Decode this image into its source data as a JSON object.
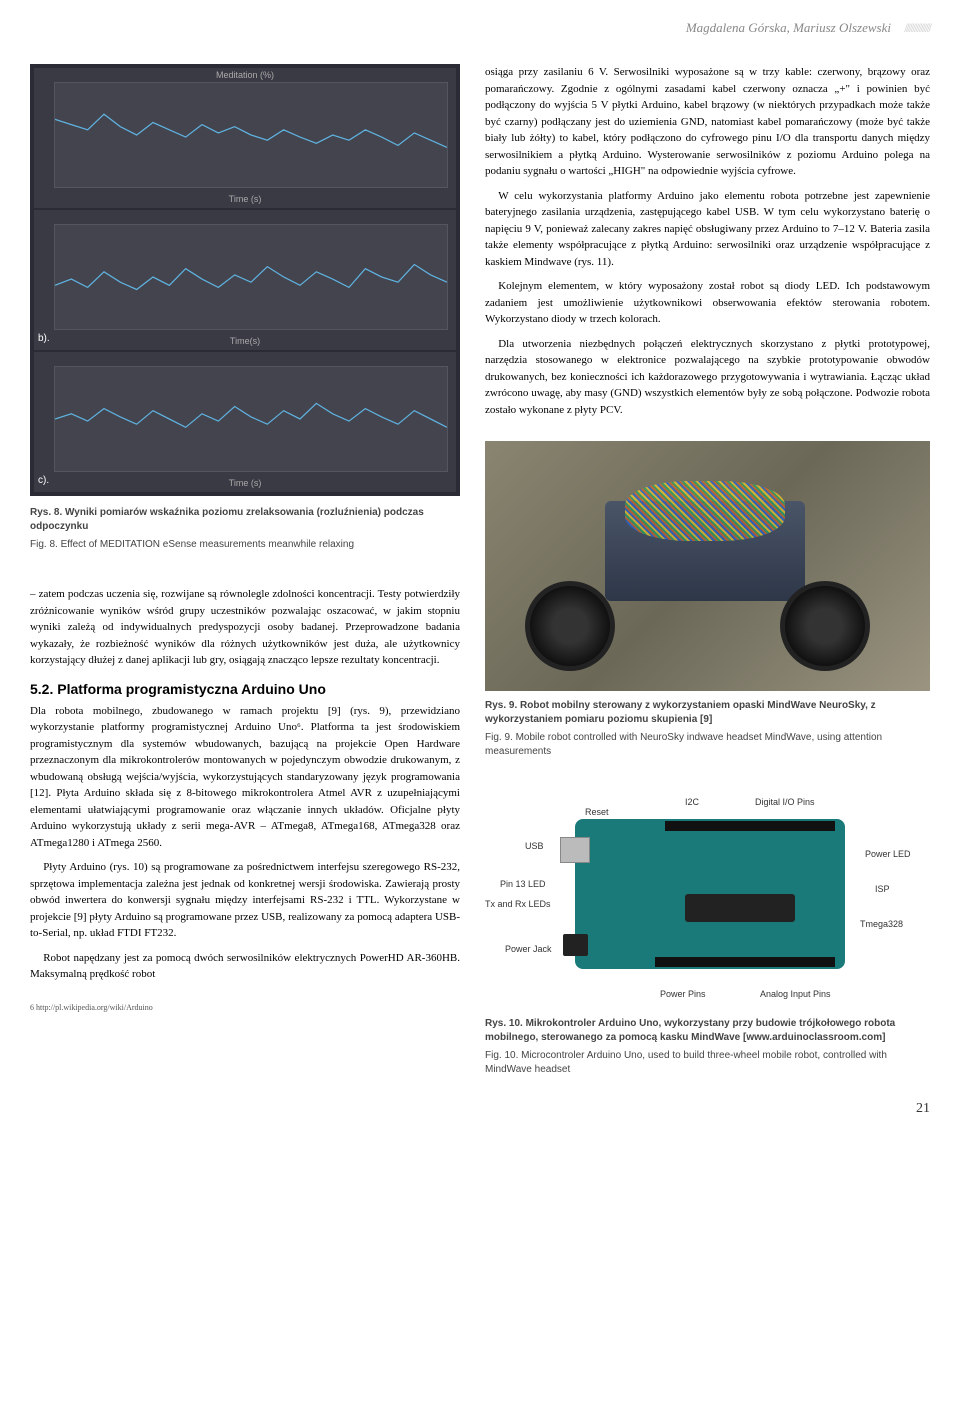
{
  "header": {
    "authors": "Magdalena Górska, Mariusz Olszewski"
  },
  "charts": {
    "panel_bg": "#3a3a45",
    "plot_bg": "#44444f",
    "line_color": "#5fb3e0",
    "grid_color": "#555560",
    "top_label": "Meditation (%)",
    "x_label": "Time (s)",
    "x_label_b": "Time(s)",
    "x_label_c": "Time (s)",
    "letter_b": "b).",
    "letter_c": "c).",
    "series_a": [
      65,
      60,
      55,
      70,
      58,
      50,
      62,
      55,
      48,
      60,
      52,
      58,
      50,
      45,
      55,
      48,
      42,
      50,
      45,
      55,
      48,
      40,
      52,
      45,
      38
    ],
    "series_b": [
      42,
      48,
      40,
      55,
      45,
      38,
      50,
      42,
      58,
      48,
      40,
      52,
      45,
      60,
      50,
      42,
      55,
      48,
      40,
      58,
      50,
      45,
      62,
      52,
      45
    ],
    "series_c": [
      50,
      55,
      48,
      60,
      52,
      45,
      58,
      50,
      42,
      55,
      48,
      62,
      52,
      45,
      58,
      50,
      65,
      55,
      48,
      60,
      52,
      45,
      58,
      50,
      42
    ]
  },
  "captions": {
    "fig8_bold": "Rys. 8. Wyniki pomiarów wskaźnika poziomu zrelaksowania (rozluźnienia) podczas odpoczynku",
    "fig8_plain": "Fig. 8. Effect of MEDITATION eSense measurements meanwhile relaxing",
    "fig9_bold": "Rys. 9. Robot mobilny sterowany z wykorzystaniem opaski MindWave NeuroSky, z wykorzystaniem pomiaru poziomu skupienia [9]",
    "fig9_plain": "Fig. 9. Mobile robot controlled with NeuroSky indwave headset MindWave, using attention measurements",
    "fig10_bold": "Rys. 10. Mikrokontroler Arduino Uno, wykorzystany przy budowie trójkołowego robota mobilnego, sterowanego za pomocą kasku MindWave [www.arduinoclassroom.com]",
    "fig10_plain": "Fig. 10. Microcontroler Arduino Uno, used to build three-wheel mobile robot, controlled with MindWave headset"
  },
  "paragraphs": {
    "right_p1": "osiąga przy zasilaniu 6 V. Serwosilniki wyposażone są w trzy kable: czerwony, brązowy oraz pomarańczowy. Zgodnie z ogólnymi zasadami kabel czerwony oznacza „+\" i powinien być podłączony do wyjścia 5 V płytki Arduino, kabel brązowy (w niektórych przypadkach może także być czarny) podłączany jest do uziemienia GND, natomiast kabel pomarańczowy (może być także biały lub żółty) to kabel, który podłączono do cyfrowego pinu I/O dla transportu danych między serwosilnikiem a płytką Arduino. Wysterowanie serwosilników z poziomu Arduino polega na podaniu sygnału o wartości „HIGH\" na odpowiednie wyjścia cyfrowe.",
    "right_p2": "W celu wykorzystania platformy Arduino jako elementu robota potrzebne jest zapewnienie bateryjnego zasilania urządzenia, zastępującego kabel USB. W tym celu wykorzystano baterię o napięciu 9 V, ponieważ zalecany zakres napięć obsługiwany przez Arduino to 7–12 V. Bateria zasila także elementy współpracujące z płytką Arduino: serwosilniki oraz urządzenie współpracujące z kaskiem Mindwave (rys. 11).",
    "right_p3": "Kolejnym elementem, w który wyposażony został robot są diody LED. Ich podstawowym zadaniem jest umożliwienie użytkownikowi obserwowania efektów sterowania robotem. Wykorzystano diody w trzech kolorach.",
    "right_p4": "Dla utworzenia niezbędnych połączeń elektrycznych skorzystano z płytki prototypowej, narzędzia stosowanego w elektronice pozwalającego na szybkie prototypowanie obwodów drukowanych, bez konieczności ich każdorazowego przygotowywania i wytrawiania. Łącząc układ zwrócono uwagę, aby masy (GND) wszystkich elementów były ze sobą połączone. Podwozie robota zostało wykonane z płyty PCV.",
    "left_p1": "– zatem podczas uczenia się, rozwijane są równolegle zdolności koncentracji. Testy potwierdziły zróżnicowanie wyników wśród grupy uczestników pozwalając oszacować, w jakim stopniu wyniki zależą od indywidualnych predyspozycji osoby badanej. Przeprowadzone badania wykazały, że rozbieżność wyników dla różnych użytkowników jest duża, ale użytkownicy korzystający dłużej z danej aplikacji lub gry, osiągają znacząco lepsze rezultaty koncentracji.",
    "section_52": "5.2. Platforma programistyczna Arduino Uno",
    "left_p2": "Dla robota mobilnego, zbudowanego w ramach projektu [9] (rys. 9), przewidziano wykorzystanie platformy programistycznej Arduino Uno⁶. Platforma ta jest środowiskiem programistycznym dla systemów wbudowanych, bazującą na projekcie Open Hardware przeznaczonym dla mikrokontrolerów montowanych w pojedynczym obwodzie drukowanym, z wbudowaną obsługą wejścia/wyjścia, wykorzystujących standaryzowany język programowania [12]. Płyta Arduino składa się z 8-bitowego mikrokontrolera Atmel AVR z uzupełniającymi elementami ułatwiającymi programowanie oraz włączanie innych układów. Oficjalne płyty Arduino wykorzystują układy z serii mega-AVR – ATmega8, ATmega168, ATmega328 oraz ATmega1280 i ATmega 2560.",
    "left_p3": "Płyty Arduino (rys. 10) są programowane za pośrednictwem interfejsu szeregowego RS-232, sprzętowa implementacja zależna jest jednak od konkretnej wersji środowiska. Zawierają prosty obwód inwertera do konwersji sygnału między interfejsami RS-232 i TTL. Wykorzystane w projekcie [9] płyty Arduino są programowane przez USB, realizowany za pomocą adaptera USB-to-Serial, np. układ FTDI FT232.",
    "left_p4": "Robot napędzany jest za pomocą dwóch serwosilników elektrycznych PowerHD AR-360HB. Maksymalną prędkość robot"
  },
  "arduino_labels": {
    "reset": "Reset",
    "usb": "USB",
    "pin13": "Pin 13 LED",
    "txrx": "Tx and Rx LEDs",
    "power_jack": "Power Jack",
    "i2c": "I2C",
    "digital_io": "Digital I/O Pins",
    "power_led": "Power LED",
    "isp": "ISP",
    "tmega": "Tmega328",
    "power_pins": "Power Pins",
    "analog": "Analog Input Pins"
  },
  "footnote": "6   http://pl.wikipedia.org/wiki/Arduino",
  "page_number": "21"
}
